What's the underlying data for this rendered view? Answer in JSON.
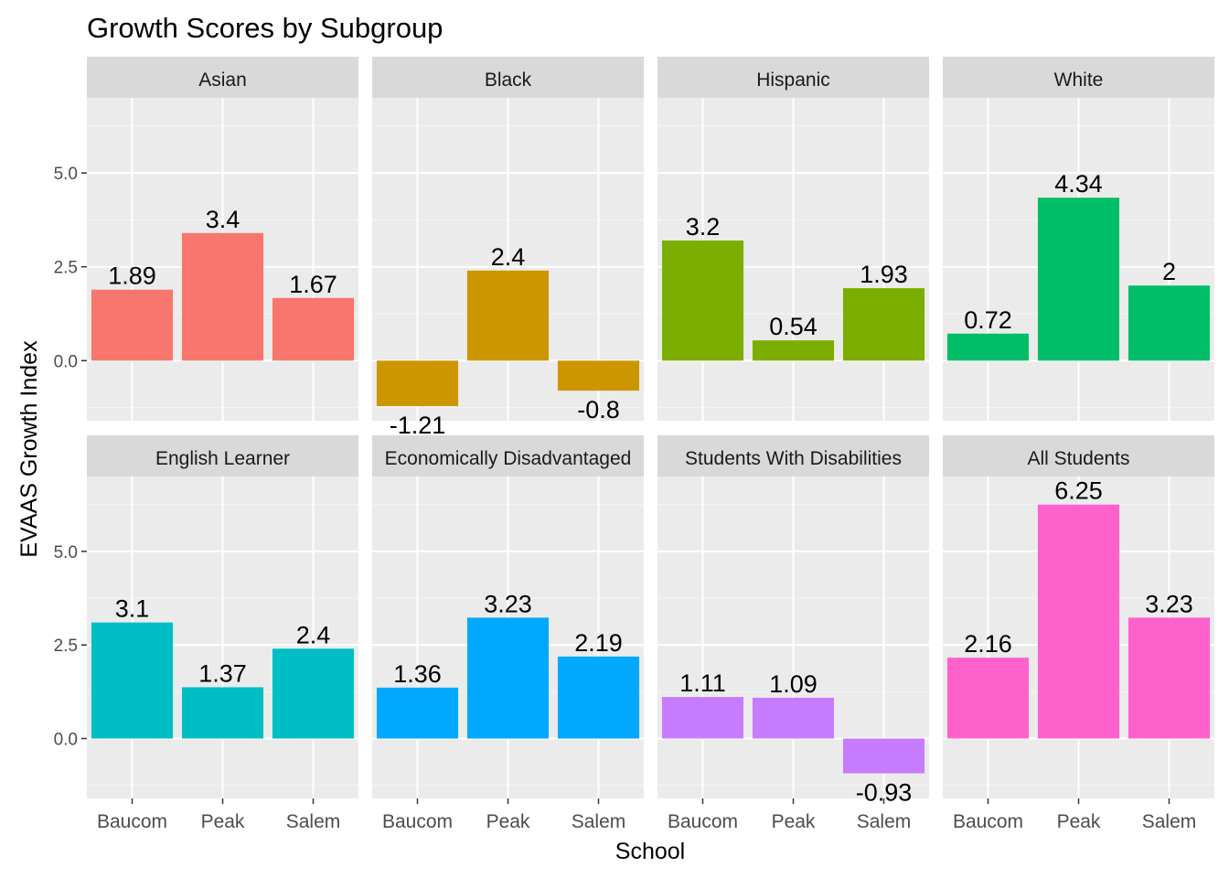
{
  "chart_data": {
    "type": "bar",
    "title": "Growth Scores by Subgroup",
    "xlabel": "School",
    "ylabel": "EVAAS Growth Index",
    "categories": [
      "Baucom",
      "Peak",
      "Salem"
    ],
    "ylim": [
      -1.6,
      7.0
    ],
    "yticks": [
      0.0,
      2.5,
      5.0
    ],
    "ytick_labels": [
      "0.0",
      "2.5",
      "5.0"
    ],
    "grid": true,
    "legend": "none",
    "panels": [
      {
        "name": "Asian",
        "color": "#F8766D",
        "values": [
          1.89,
          3.4,
          1.67
        ],
        "labels": [
          "1.89",
          "3.4",
          "1.67"
        ]
      },
      {
        "name": "Black",
        "color": "#CD9600",
        "values": [
          -1.21,
          2.4,
          -0.8
        ],
        "labels": [
          "-1.21",
          "2.4",
          "-0.8"
        ]
      },
      {
        "name": "Hispanic",
        "color": "#7CAE00",
        "values": [
          3.2,
          0.54,
          1.93
        ],
        "labels": [
          "3.2",
          "0.54",
          "1.93"
        ]
      },
      {
        "name": "White",
        "color": "#00BE67",
        "values": [
          0.72,
          4.34,
          2
        ],
        "labels": [
          "0.72",
          "4.34",
          "2"
        ]
      },
      {
        "name": "English Learner",
        "color": "#00BFC4",
        "values": [
          3.1,
          1.37,
          2.4
        ],
        "labels": [
          "3.1",
          "1.37",
          "2.4"
        ]
      },
      {
        "name": "Economically Disadvantaged",
        "color": "#00A9FF",
        "values": [
          1.36,
          3.23,
          2.19
        ],
        "labels": [
          "1.36",
          "3.23",
          "2.19"
        ]
      },
      {
        "name": "Students With Disabilities",
        "color": "#C77CFF",
        "values": [
          1.11,
          1.09,
          -0.93
        ],
        "labels": [
          "1.11",
          "1.09",
          "-0.93"
        ]
      },
      {
        "name": "All Students",
        "color": "#FF61CC",
        "values": [
          2.16,
          6.25,
          3.23
        ],
        "labels": [
          "2.16",
          "6.25",
          "3.23"
        ]
      }
    ]
  }
}
